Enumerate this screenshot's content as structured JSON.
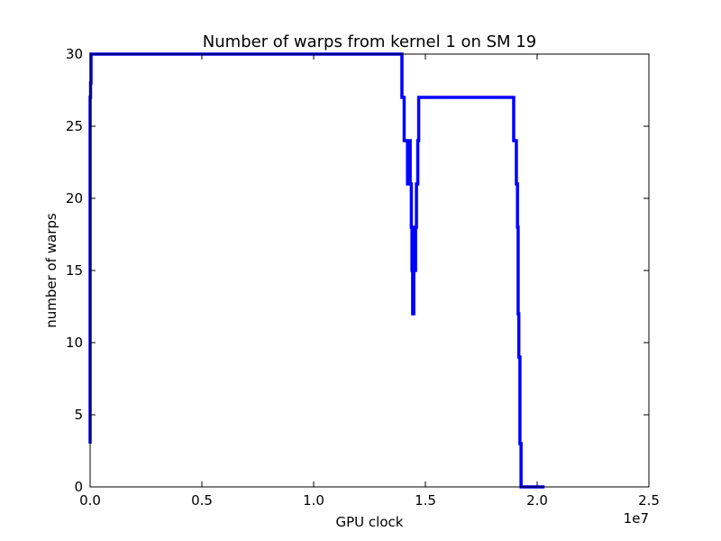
{
  "chart_data": {
    "type": "line",
    "title": "Number of warps from kernel 1 on SM 19",
    "xlabel": "GPU clock",
    "ylabel": "number of warps",
    "x_multiplier_label": "1e7",
    "xlim": [
      0,
      25000000
    ],
    "ylim": [
      0,
      30
    ],
    "x_ticks": [
      0,
      5000000,
      10000000,
      15000000,
      20000000,
      25000000
    ],
    "x_tick_labels": [
      "0.0",
      "0.5",
      "1.0",
      "1.5",
      "2.0",
      "2.5"
    ],
    "y_ticks": [
      0,
      5,
      10,
      15,
      20,
      25,
      30
    ],
    "y_tick_labels": [
      "0",
      "5",
      "10",
      "15",
      "20",
      "25",
      "30"
    ],
    "grid": false,
    "line_color": "#0000ff",
    "series": [
      {
        "x": [
          0,
          0,
          20000,
          20000,
          40000,
          40000,
          13950000,
          13950000,
          14050000,
          14050000,
          14200000,
          14200000,
          14250000,
          14250000,
          14320000,
          14320000,
          14370000,
          14370000,
          14400000,
          14400000,
          14430000,
          14430000,
          14480000,
          14480000,
          14520000,
          14520000,
          14560000,
          14560000,
          14600000,
          14600000,
          14660000,
          14660000,
          14700000,
          14700000,
          18950000,
          18950000,
          19070000,
          19070000,
          19120000,
          19120000,
          19150000,
          19150000,
          19180000,
          19180000,
          19230000,
          19230000,
          19280000,
          19280000,
          20330000
        ],
        "y": [
          3,
          27,
          27,
          28,
          28,
          30,
          30,
          27,
          27,
          24,
          24,
          21,
          21,
          24,
          24,
          21,
          21,
          18,
          18,
          15,
          15,
          12,
          12,
          18,
          18,
          15,
          15,
          18,
          18,
          21,
          21,
          24,
          24,
          27,
          27,
          24,
          24,
          21,
          21,
          18,
          18,
          12,
          12,
          9,
          9,
          3,
          3,
          0,
          0
        ]
      }
    ]
  }
}
